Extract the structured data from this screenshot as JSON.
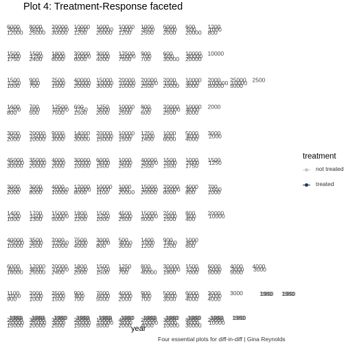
{
  "title": "Plot 4: Treatment-Response faceted",
  "caption": "Four essential plots for diff-in-diff | Gina Reynolds",
  "legend": {
    "title": "treatment",
    "items": [
      {
        "label": "not treated",
        "color": "#c8c8c8"
      },
      {
        "label": "treated",
        "color": "#17375e"
      }
    ]
  },
  "chart_data": {
    "type": "line",
    "title": "Plot 4: Treatment-Response faceted",
    "xlabel": "year",
    "ylabel": "",
    "facet_rows": 11,
    "facet_cols": 12,
    "x_tick_labels": [
      "1980",
      "1990"
    ],
    "panels": [
      [
        "6000",
        "3000",
        "12000",
        "8000",
        "6000",
        "25000",
        "20000",
        "15000",
        "30000",
        "10000",
        "1400",
        "1200",
        "1000",
        "30000",
        "20000",
        "10000",
        "1400",
        "1200",
        "1000",
        "3500",
        "2500",
        "6000",
        "4000",
        "2000",
        "600",
        "500",
        "20000",
        "1200",
        "1000",
        "800"
      ],
      [
        "1500",
        "1000",
        "1750",
        "1500",
        "1250",
        "2400",
        "1800",
        "9000",
        "6000",
        "30000",
        "10000",
        "6000",
        "3000",
        "7000",
        "4000",
        "12500",
        "10000",
        "7500",
        "900",
        "700",
        "700",
        "600",
        "500",
        "30000",
        "10000",
        "30000",
        "20000",
        "10000"
      ],
      [
        "1500",
        "1250",
        "1000",
        "900",
        "800",
        "700",
        "2500",
        "2000",
        "1500",
        "40000",
        "30000",
        "20000",
        "15000",
        "10000",
        "30000",
        "20000",
        "15000",
        "10000",
        "20000",
        "15000",
        "2500",
        "2000",
        "1500",
        "20000",
        "10000",
        "4000",
        "3000",
        "2000",
        "100000",
        "50000",
        "25000",
        "10000",
        "5000",
        "2500"
      ],
      [
        "1600",
        "1200",
        "800",
        "700",
        "600",
        "500",
        "12500",
        "10000",
        "7500",
        "600",
        "1750",
        "1500",
        "1250",
        "3000",
        "2000",
        "10000",
        "5000",
        "2500",
        "800",
        "700",
        "600",
        "20000",
        "10000",
        "2500",
        "10000",
        "4000",
        "3000",
        "2000"
      ],
      [
        "3000",
        "2500",
        "2000",
        "20000",
        "15000",
        "10000",
        "9000",
        "6000",
        "3000",
        "14000",
        "8000",
        "30000",
        "20000",
        "10000",
        "15000",
        "10000",
        "5000",
        "1500",
        "1250",
        "1000",
        "1400",
        "1000",
        "600",
        "6000",
        "5000",
        "4000",
        "4000",
        "3000",
        "2000"
      ],
      [
        "45000",
        "35000",
        "30000",
        "35000",
        "30000",
        "20000",
        "4000",
        "3000",
        "2000",
        "30000",
        "20000",
        "10000",
        "6000",
        "3000",
        "1500",
        "1000",
        "5000",
        "2500",
        "40000",
        "20000",
        "2500",
        "1500",
        "2000",
        "1500",
        "1000",
        "2000",
        "1750",
        "1500",
        "1250"
      ],
      [
        "3000",
        "2500",
        "2000",
        "3000",
        "2500",
        "8000",
        "4000",
        "20000",
        "10000",
        "12000",
        "10000",
        "8000",
        "10000",
        "5000",
        "1100",
        "1000",
        "900",
        "20000",
        "15000",
        "10000",
        "25000",
        "20000",
        "15000",
        "6000",
        "4000",
        "900",
        "800",
        "700",
        "1500",
        "1000"
      ],
      [
        "1400",
        "1200",
        "1000",
        "1700",
        "1500",
        "1300",
        "15000",
        "10000",
        "5000",
        "1800",
        "1500",
        "1200",
        "1500",
        "1250",
        "1000",
        "4500",
        "3500",
        "2500",
        "15000",
        "10000",
        "5000",
        "2500",
        "2000",
        "1500",
        "800",
        "600",
        "400",
        "20000",
        "10000"
      ],
      [
        "40000",
        "25000",
        "10000",
        "3500",
        "3000",
        "2500",
        "2000",
        "12500",
        "10000",
        "7500",
        "5000",
        "4000",
        "3000",
        "2000",
        "800",
        "500",
        "4000",
        "3000",
        "1400",
        "1000",
        "1200",
        "900",
        "1400",
        "1200",
        "1000",
        "800",
        "600"
      ],
      [
        "6000",
        "4000",
        "16000",
        "12000",
        "8000",
        "25000",
        "20000",
        "15000",
        "2400",
        "1800",
        "2500",
        "2000",
        "1500",
        "1750",
        "1500",
        "1250",
        "800",
        "700",
        "800",
        "600",
        "40000",
        "30000",
        "20000",
        "1800",
        "1500",
        "1200",
        "7000",
        "6000",
        "5000",
        "5000",
        "4000",
        "3000",
        "5000",
        "4000",
        "3000"
      ],
      [
        "1100",
        "1000",
        "900",
        "2000",
        "1500",
        "1000",
        "2500",
        "2000",
        "1500",
        "900",
        "800",
        "700",
        "7000",
        "6000",
        "5000",
        "4000",
        "3000",
        "2000",
        "900",
        "800",
        "700",
        "5000",
        "4000",
        "3000",
        "6000",
        "4000",
        "4000",
        "3000",
        "5000",
        "4000",
        "3000"
      ],
      [
        "25000",
        "20000",
        "15000",
        "30000",
        "25000",
        "20000",
        "3500",
        "3000",
        "2500",
        "25000",
        "20000",
        "15000",
        "15000",
        "10000",
        "5000",
        "4000",
        "3000",
        "2000",
        "20000",
        "10000",
        "4000",
        "3000",
        "2000",
        "10000",
        "8000",
        "6000",
        "30000",
        "20000",
        "10000"
      ]
    ]
  }
}
